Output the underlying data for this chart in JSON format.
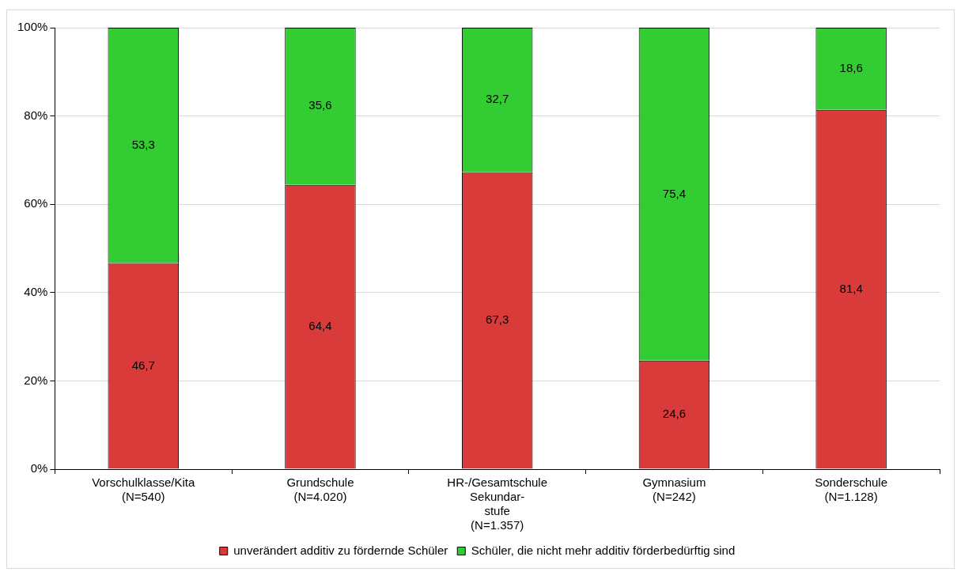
{
  "chart_data": {
    "type": "bar",
    "stacked": true,
    "categories": [
      "Vorschulklasse/Kita\n(N=540)",
      "Grundschule\n(N=4.020)",
      "HR-/Gesamtschule\nSekundar-\nstufe\n(N=1.357)",
      "Gymnasium\n(N=242)",
      "Sonderschule\n(N=1.128)"
    ],
    "series": [
      {
        "name": "unverändert additiv zu fördernde Schüler",
        "color": "#d93b3b",
        "values": [
          46.7,
          64.4,
          67.3,
          24.6,
          81.4
        ],
        "value_labels": [
          "46,7",
          "64,4",
          "67,3",
          "24,6",
          "81,4"
        ]
      },
      {
        "name": "Schüler, die nicht mehr additiv förderbedürftig sind",
        "color": "#33cc33",
        "values": [
          53.3,
          35.6,
          32.7,
          75.4,
          18.6
        ],
        "value_labels": [
          "53,3",
          "35,6",
          "32,7",
          "75,4",
          "18,6"
        ]
      }
    ],
    "ylim": [
      0,
      100
    ],
    "yticks": [
      {
        "value": 0,
        "label": "0%"
      },
      {
        "value": 20,
        "label": "20%"
      },
      {
        "value": 40,
        "label": "40%"
      },
      {
        "value": 60,
        "label": "60%"
      },
      {
        "value": 80,
        "label": "80%"
      },
      {
        "value": 100,
        "label": "100%"
      }
    ],
    "grid": "y",
    "legend": "bottom"
  }
}
